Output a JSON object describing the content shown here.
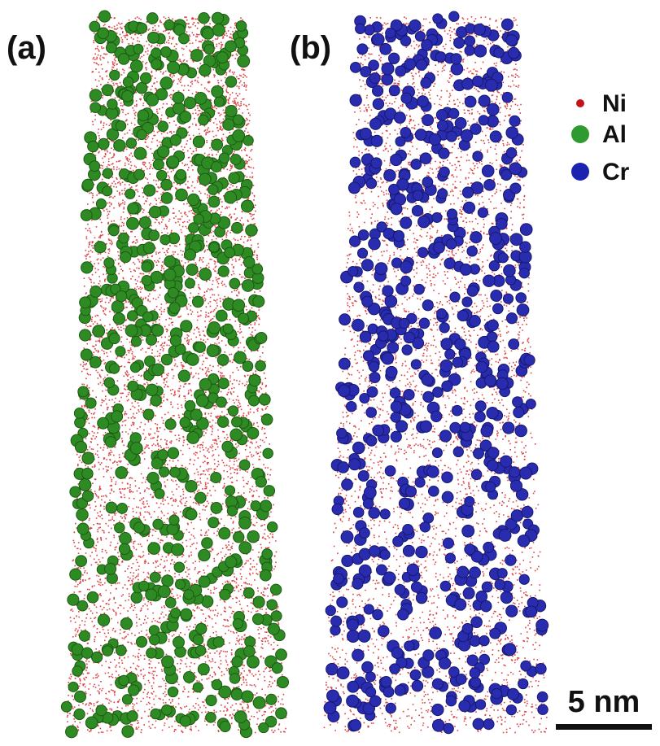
{
  "panels": [
    {
      "label": "(a)"
    },
    {
      "label": "(b)"
    }
  ],
  "legend": [
    {
      "label": "Ni"
    },
    {
      "label": "Al"
    },
    {
      "label": "Cr"
    }
  ],
  "scale_bar": {
    "label": "5 nm"
  }
}
